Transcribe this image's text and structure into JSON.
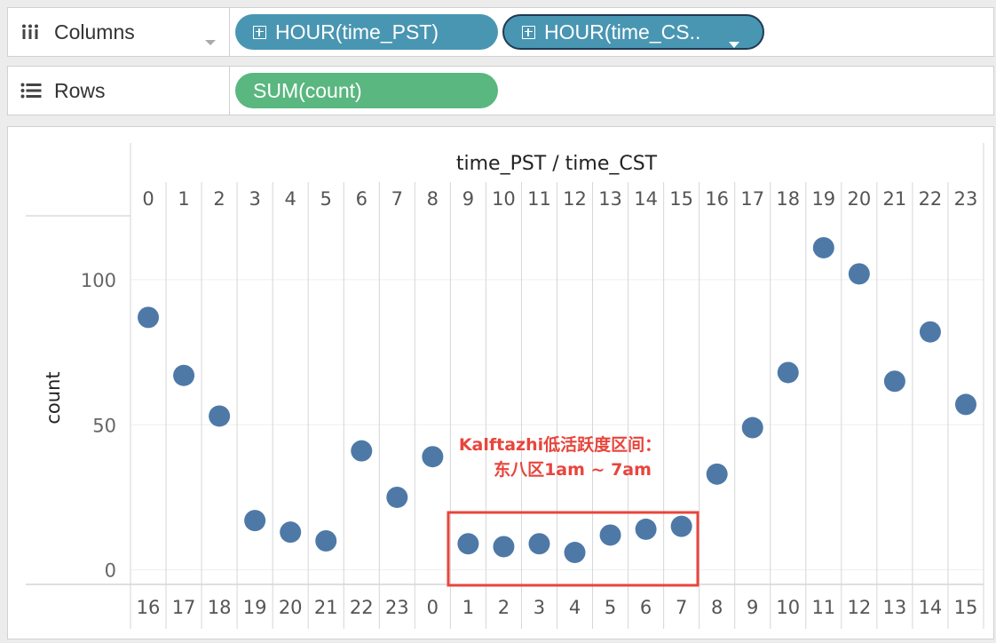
{
  "columns_shelf": {
    "label": "Columns",
    "pills": [
      {
        "label": "HOUR(time_PST)",
        "color": "#4996b2"
      },
      {
        "label": "HOUR(time_CS..",
        "color": "#4996b2"
      }
    ]
  },
  "rows_shelf": {
    "label": "Rows",
    "pills": [
      {
        "label": "SUM(count)",
        "color": "#59b77f"
      }
    ]
  },
  "chart_data": {
    "type": "scatter",
    "top_axis_title": "time_PST / time_CST",
    "ylabel": "count",
    "ylim": [
      -5,
      122
    ],
    "y_ticks": [
      0,
      50,
      100
    ],
    "grid": true,
    "marker_color": "#4e79a7",
    "x_top": [
      "0",
      "1",
      "2",
      "3",
      "4",
      "5",
      "6",
      "7",
      "8",
      "9",
      "10",
      "11",
      "12",
      "13",
      "14",
      "15",
      "16",
      "17",
      "18",
      "19",
      "20",
      "21",
      "22",
      "23"
    ],
    "x_bottom": [
      "16",
      "17",
      "18",
      "19",
      "20",
      "21",
      "22",
      "23",
      "0",
      "1",
      "2",
      "3",
      "4",
      "5",
      "6",
      "7",
      "8",
      "9",
      "10",
      "11",
      "12",
      "13",
      "14",
      "15"
    ],
    "values": [
      87,
      67,
      53,
      17,
      13,
      10,
      41,
      25,
      39,
      9,
      8,
      9,
      6,
      12,
      14,
      15,
      33,
      49,
      68,
      111,
      102,
      65,
      82,
      57
    ]
  },
  "annotation": {
    "line1": "Kalftazhi低活跃度区间：",
    "line2": "东八区1am ~ 7am",
    "color": "#e8453c"
  }
}
